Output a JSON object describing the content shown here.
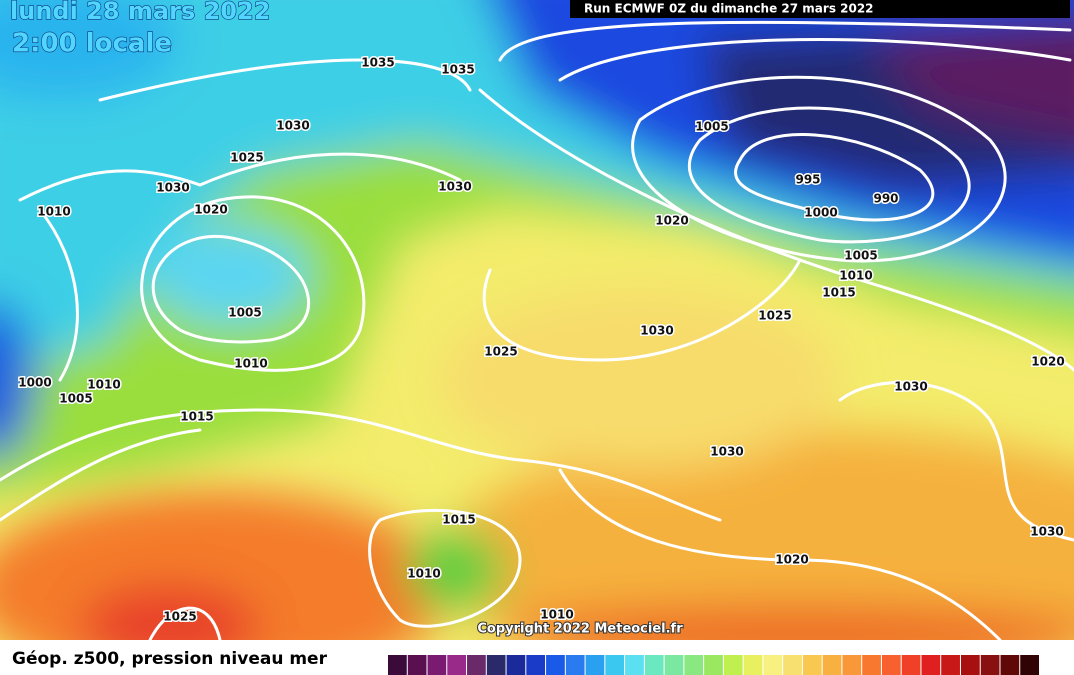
{
  "header": {
    "date": "lundi 28 mars 2022",
    "time": "2:00 locale",
    "run": "Run ECMWF 0Z du dimanche 27 mars 2022"
  },
  "isobar_labels": [
    1035,
    1035,
    1030,
    1025,
    1030,
    1020,
    1010,
    1030,
    1005,
    1010,
    1000,
    1010,
    1005,
    1015,
    1005,
    995,
    990,
    1000,
    1020,
    1005,
    1010,
    1015,
    1025,
    1030,
    1025,
    1030,
    1020,
    1030,
    1030,
    1015,
    1010,
    1020,
    1025,
    1010
  ],
  "copyright": "Copyright 2022 Meteociel.fr",
  "legend": {
    "title": "Géop. z500, pression niveau mer"
  }
}
